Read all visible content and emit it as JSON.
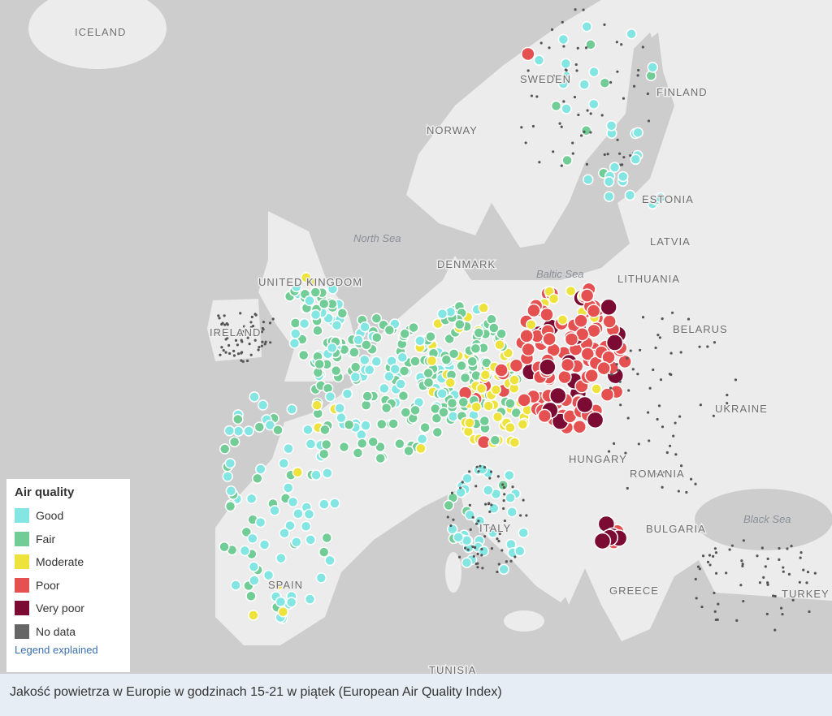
{
  "map": {
    "places": [
      "ICELAND",
      "SWEDEN",
      "FINLAND",
      "NORWAY",
      "ESTONIA",
      "North Sea",
      "LATVIA",
      "DENMARK",
      "Baltic Sea",
      "LITHUANIA",
      "UNITED KINGDOM",
      "IRELAND",
      "BELARUS",
      "UKRAINE",
      "HUNGARY",
      "ROMANIA",
      "Black Sea",
      "BULGARIA",
      "ITALY",
      "SPAIN",
      "GREECE",
      "TURKEY",
      "TUNISIA"
    ]
  },
  "legend": {
    "title": "Air quality",
    "items": [
      "Good",
      "Fair",
      "Moderate",
      "Poor",
      "Very poor",
      "No data"
    ],
    "link": "Legend explained"
  },
  "caption": "Jakość powietrza w Europie w godzinach 15-21 w piątek (European Air Quality Index)"
}
